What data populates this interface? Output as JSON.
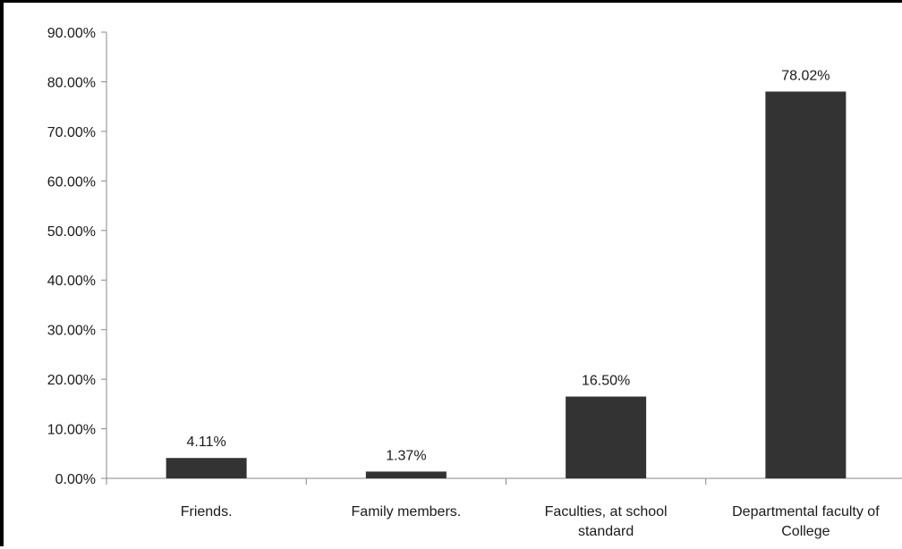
{
  "chart_data": {
    "type": "bar",
    "categories": [
      [
        "Friends."
      ],
      [
        "Family members."
      ],
      [
        "Faculties, at school",
        "standard"
      ],
      [
        "Departmental faculty of",
        "College"
      ]
    ],
    "values": [
      4.11,
      1.37,
      16.5,
      78.02
    ],
    "value_labels": [
      "4.11%",
      "1.37%",
      "16.50%",
      "78.02%"
    ],
    "y_ticks": [
      0,
      10,
      20,
      30,
      40,
      50,
      60,
      70,
      80,
      90
    ],
    "y_tick_labels": [
      "0.00%",
      "10.00%",
      "20.00%",
      "30.00%",
      "40.00%",
      "50.00%",
      "60.00%",
      "70.00%",
      "80.00%",
      "90.00%"
    ],
    "ylim": [
      0,
      90
    ],
    "grid": false,
    "legend": "none",
    "bar_color": "#333333",
    "axis_color": "#888888"
  }
}
